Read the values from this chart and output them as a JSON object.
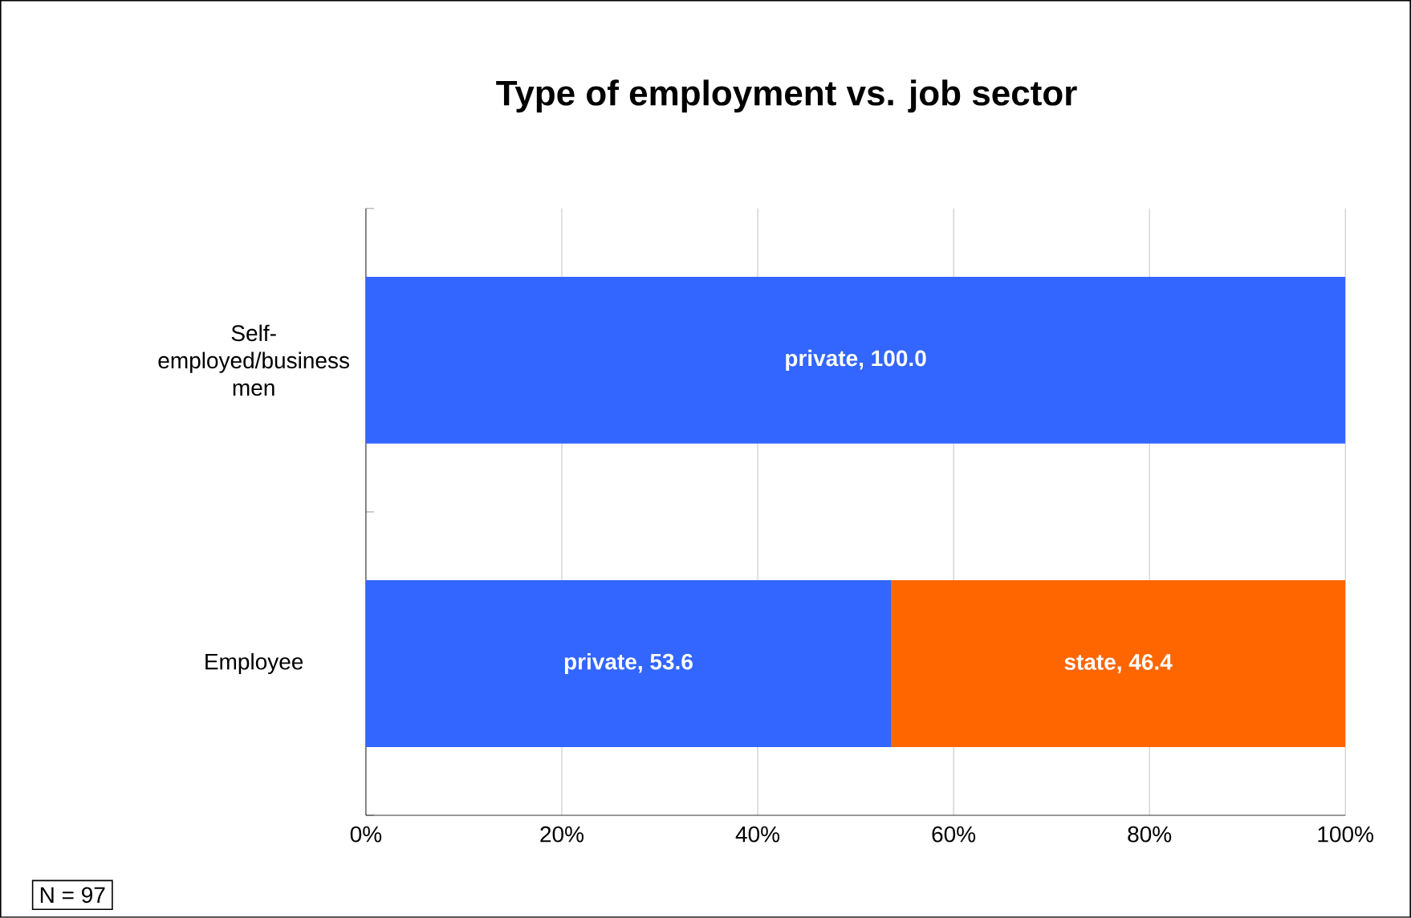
{
  "chart_data": {
    "type": "bar",
    "orientation": "horizontal",
    "stacked": true,
    "title": "Type of employment vs. job sector",
    "categories": [
      "Self-employed/business men",
      "Employee"
    ],
    "series": [
      {
        "color": "#3366ff",
        "values": [
          100.0,
          53.6
        ],
        "value_labels": [
          "private, 100.0",
          "private, 53.6"
        ]
      },
      {
        "color": "#ff6600",
        "values": [
          null,
          46.4
        ],
        "value_labels": [
          null,
          "state, 46.4"
        ]
      }
    ],
    "xlim": [
      0,
      100
    ],
    "xticks": [
      {
        "value": 0,
        "label": "0%"
      },
      {
        "value": 20,
        "label": "20%"
      },
      {
        "value": 40,
        "label": "40%"
      },
      {
        "value": 60,
        "label": "60%"
      },
      {
        "value": 80,
        "label": "80%"
      },
      {
        "value": 100,
        "label": "100%"
      }
    ],
    "grid": "x",
    "annotations": [
      "N = 97"
    ]
  }
}
